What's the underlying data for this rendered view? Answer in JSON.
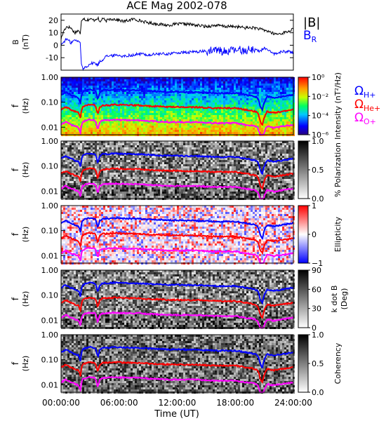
{
  "chart_data": {
    "type": "line",
    "title": "ACE Mag 2002-078",
    "xlabel": "Time (UT)",
    "xticks": [
      "00:00:00",
      "06:00:00",
      "12:00:00",
      "18:00:00",
      "24:00:00"
    ],
    "xrange_hours": [
      0,
      24
    ],
    "colors": {
      "black": "#000000",
      "blue": "#0000ff",
      "red": "#ff0000",
      "magenta": "#ff00ff"
    },
    "panels": [
      {
        "id": "field",
        "type": "line",
        "ylabel": "B",
        "yunit": "(nT)",
        "yticks": [
          "20",
          "10",
          "0",
          "-10"
        ],
        "ylim": [
          -20,
          25
        ],
        "legend": [
          {
            "label": "|B|",
            "color": "#000000"
          },
          {
            "label": "B",
            "subscript": "R",
            "color": "#0000ff"
          }
        ],
        "series": [
          {
            "name": "|B|",
            "x": [
              0,
              0.3,
              0.6,
              1.0,
              1.4,
              1.8,
              2.0,
              2.1,
              2.3,
              2.6,
              3.0,
              3.4,
              3.8,
              4.0,
              4.3,
              4.6,
              5.0,
              5.5,
              6.0,
              6.5,
              7.0,
              7.5,
              8.0,
              8.5,
              9.0,
              10,
              11,
              12,
              13,
              14,
              15,
              16,
              17,
              18,
              19,
              20,
              20.5,
              21,
              21.5,
              22,
              22.5,
              23,
              23.5,
              24
            ],
            "y": [
              5,
              12,
              15,
              14,
              10,
              12,
              8,
              20,
              22,
              20,
              21,
              20,
              22,
              18,
              22,
              19,
              21,
              21,
              20,
              19,
              20,
              21,
              20,
              19,
              18,
              17,
              16,
              17,
              17,
              16,
              15,
              16,
              15,
              15,
              14,
              14,
              13,
              12,
              11,
              9,
              9,
              10,
              11,
              13
            ]
          },
          {
            "name": "B_R",
            "x": [
              0,
              0.3,
              0.6,
              1.0,
              1.4,
              1.8,
              2.0,
              2.1,
              2.3,
              2.6,
              3.0,
              3.4,
              3.8,
              4.0,
              4.3,
              4.6,
              5.0,
              5.5,
              6.0,
              6.5,
              7.0,
              7.5,
              8.0,
              8.5,
              9.0,
              10,
              11,
              12,
              13,
              14,
              15,
              16,
              17,
              18,
              19,
              20,
              20.5,
              21,
              21.5,
              22,
              22.5,
              23,
              23.5,
              24
            ],
            "y": [
              0,
              3,
              5,
              2,
              4,
              3,
              2,
              -16,
              -19,
              -17,
              -15,
              -14,
              -16,
              -13,
              -12,
              -8,
              -9,
              -8,
              -8,
              -9,
              -8,
              -8,
              -7,
              -7,
              -8,
              -7,
              -7,
              -6,
              -6,
              -5,
              -5,
              -4,
              -5,
              -4,
              -4,
              -3,
              -5,
              -2,
              -5,
              -7,
              -6,
              -5,
              -5,
              -6
            ]
          }
        ]
      },
      {
        "id": "intensity",
        "type": "heatmap",
        "ylabel": "f",
        "yunit": "(Hz)",
        "yticks": [
          "1.00",
          "0.10",
          "0.01"
        ],
        "ylim": [
          0.005,
          1.0
        ],
        "yscale": "log",
        "colorbar_label": "Intensity (nT²/Hz)",
        "colorbar_ticks": [
          "10⁰",
          "10⁻²",
          "10⁻⁴",
          "10⁻⁶"
        ],
        "colormap": "rainbow"
      },
      {
        "id": "polarization",
        "type": "heatmap",
        "ylabel": "f",
        "yunit": "(Hz)",
        "yticks": [
          "1.00",
          "0.10",
          "0.01"
        ],
        "ylim": [
          0.005,
          1.0
        ],
        "yscale": "log",
        "colorbar_label": "% Polarization",
        "colorbar_ticks": [
          "1.0",
          "0.5",
          "0.0"
        ],
        "colormap": "gray"
      },
      {
        "id": "ellipticity",
        "type": "heatmap",
        "ylabel": "f",
        "yunit": "(Hz)",
        "yticks": [
          "1.00",
          "0.10",
          "0.01"
        ],
        "ylim": [
          0.005,
          1.0
        ],
        "yscale": "log",
        "colorbar_label": "Ellipticity",
        "colorbar_ticks": [
          "1",
          "0",
          "−1"
        ],
        "colormap": "bwr"
      },
      {
        "id": "kdotb",
        "type": "heatmap",
        "ylabel": "f",
        "yunit": "(Hz)",
        "yticks": [
          "1.00",
          "0.10",
          "0.01"
        ],
        "ylim": [
          0.005,
          1.0
        ],
        "yscale": "log",
        "colorbar_label": "k dot B",
        "colorbar_unit": "(Deg)",
        "colorbar_ticks": [
          "90",
          "60",
          "30",
          "0"
        ],
        "colormap": "gray"
      },
      {
        "id": "coherency",
        "type": "heatmap",
        "ylabel": "f",
        "yunit": "(Hz)",
        "yticks": [
          "1.00",
          "0.10",
          "0.01"
        ],
        "ylim": [
          0.005,
          1.0
        ],
        "yscale": "log",
        "colorbar_label": "Coherency",
        "colorbar_ticks": [
          "1.0",
          "0.5",
          "0.0"
        ],
        "colormap": "gray"
      }
    ],
    "gyro_legend": [
      {
        "label": "Ω",
        "subscript": "H+",
        "color": "#0000ff"
      },
      {
        "label": "Ω",
        "subscript": "He+",
        "color": "#ff0000"
      },
      {
        "label": "Ω",
        "subscript": "O+",
        "color": "#ff00ff"
      }
    ],
    "gyrofrequency_lines": [
      {
        "name": "Ω_H+",
        "color": "#0000ff",
        "x": [
          0,
          0.5,
          1.0,
          1.4,
          1.8,
          2.0,
          2.2,
          2.6,
          3.0,
          3.5,
          3.8,
          4.0,
          4.3,
          4.8,
          5.5,
          6.0,
          7.0,
          8.0,
          9.0,
          10,
          11,
          12,
          13,
          14,
          15,
          16,
          17,
          18,
          19,
          20,
          20.3,
          20.6,
          20.8,
          21.0,
          21.3,
          21.6,
          22,
          23,
          24
        ],
        "y": [
          0.2,
          0.25,
          0.2,
          0.17,
          0.15,
          0.09,
          0.25,
          0.3,
          0.32,
          0.3,
          0.12,
          0.25,
          0.3,
          0.3,
          0.32,
          0.31,
          0.3,
          0.3,
          0.28,
          0.27,
          0.26,
          0.26,
          0.25,
          0.25,
          0.24,
          0.23,
          0.23,
          0.23,
          0.2,
          0.17,
          0.15,
          0.06,
          0.05,
          0.1,
          0.17,
          0.16,
          0.15,
          0.17,
          0.2
        ]
      },
      {
        "name": "Ω_He+",
        "color": "#ff0000",
        "x": [
          0,
          0.5,
          1.0,
          1.4,
          1.8,
          2.0,
          2.2,
          2.6,
          3.0,
          3.5,
          3.8,
          4.0,
          4.3,
          4.8,
          5.5,
          6.0,
          7.0,
          8.0,
          9.0,
          10,
          11,
          12,
          13,
          14,
          15,
          16,
          17,
          18,
          19,
          20,
          20.3,
          20.6,
          20.8,
          21.0,
          21.3,
          21.6,
          22,
          23,
          24
        ],
        "y": [
          0.05,
          0.063,
          0.05,
          0.043,
          0.038,
          0.023,
          0.063,
          0.075,
          0.08,
          0.075,
          0.03,
          0.063,
          0.075,
          0.075,
          0.08,
          0.078,
          0.075,
          0.075,
          0.07,
          0.068,
          0.065,
          0.065,
          0.063,
          0.063,
          0.06,
          0.058,
          0.058,
          0.058,
          0.05,
          0.043,
          0.038,
          0.015,
          0.013,
          0.025,
          0.043,
          0.04,
          0.038,
          0.043,
          0.05
        ]
      },
      {
        "name": "Ω_O+",
        "color": "#ff00ff",
        "x": [
          0,
          0.5,
          1.0,
          1.4,
          1.8,
          2.0,
          2.2,
          2.6,
          3.0,
          3.5,
          3.8,
          4.0,
          4.3,
          4.8,
          5.5,
          6.0,
          7.0,
          8.0,
          9.0,
          10,
          11,
          12,
          13,
          14,
          15,
          16,
          17,
          18,
          19,
          20,
          20.3,
          20.6,
          20.8,
          21.0,
          21.3,
          21.6,
          22,
          23,
          24
        ],
        "y": [
          0.0125,
          0.016,
          0.0125,
          0.011,
          0.0095,
          0.006,
          0.016,
          0.019,
          0.02,
          0.019,
          0.0075,
          0.016,
          0.019,
          0.019,
          0.02,
          0.0195,
          0.019,
          0.019,
          0.0175,
          0.017,
          0.016,
          0.016,
          0.016,
          0.016,
          0.015,
          0.0145,
          0.0145,
          0.0145,
          0.0125,
          0.011,
          0.0095,
          0.0038,
          0.0033,
          0.0063,
          0.011,
          0.01,
          0.0095,
          0.011,
          0.0125
        ]
      }
    ]
  }
}
